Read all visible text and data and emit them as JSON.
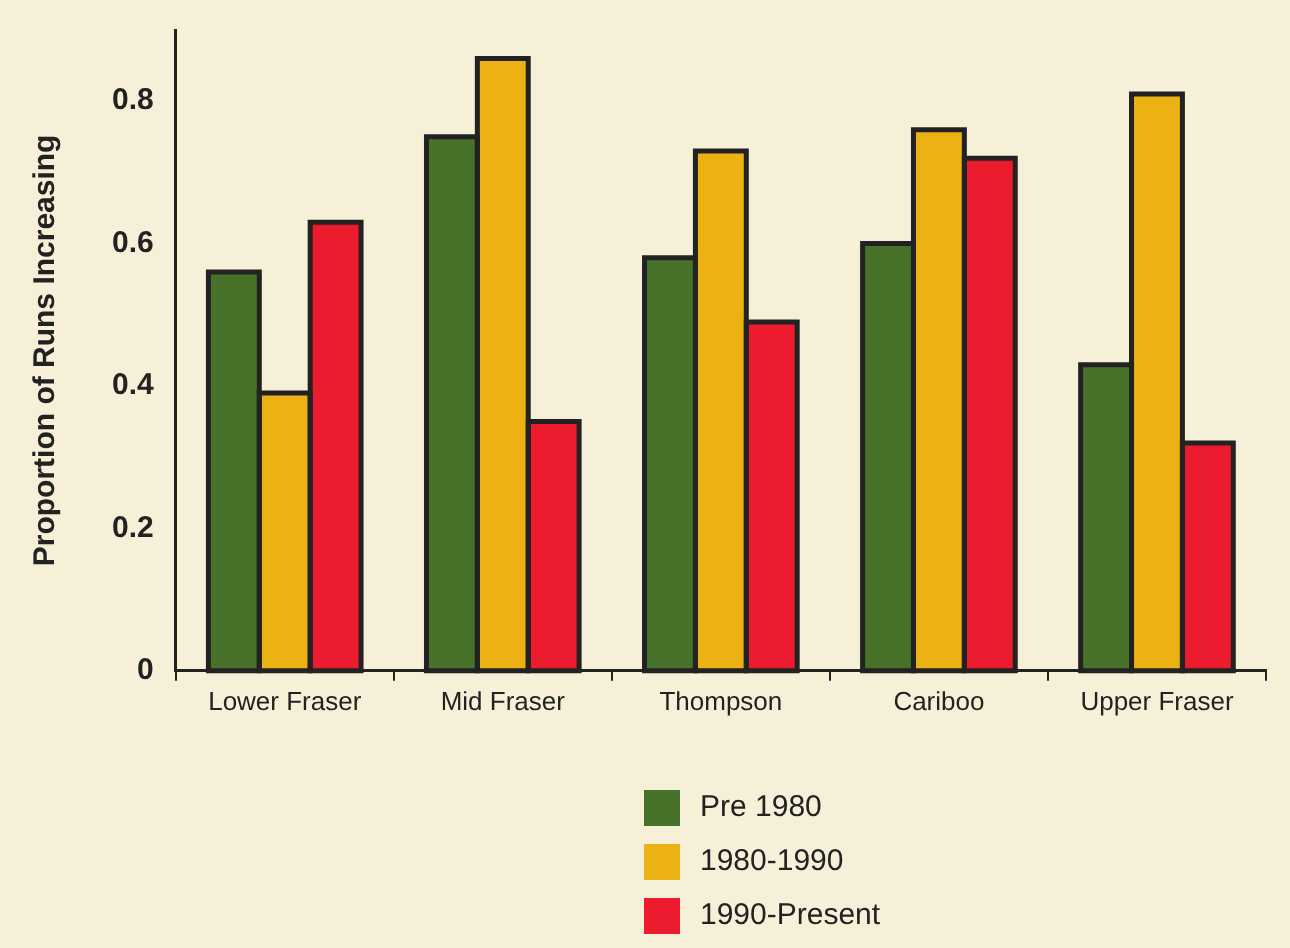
{
  "chart_data": {
    "type": "bar",
    "ylabel": "Proportion of Runs Increasing",
    "categories": [
      "Lower Fraser",
      "Mid Fraser",
      "Thompson",
      "Cariboo",
      "Upper Fraser"
    ],
    "series": [
      {
        "name": "Pre 1980",
        "color": "#48722a",
        "values": [
          0.56,
          0.75,
          0.58,
          0.6,
          0.43
        ]
      },
      {
        "name": "1980-1990",
        "color": "#ecb213",
        "values": [
          0.39,
          0.86,
          0.73,
          0.76,
          0.81
        ]
      },
      {
        "name": "1990-Present",
        "color": "#ec1c2e",
        "values": [
          0.63,
          0.35,
          0.49,
          0.72,
          0.32
        ]
      }
    ],
    "ylim": [
      0,
      0.9
    ],
    "yticks": [
      0,
      0.2,
      0.4,
      0.6,
      0.8
    ],
    "grid": false,
    "legend": "bottom"
  }
}
